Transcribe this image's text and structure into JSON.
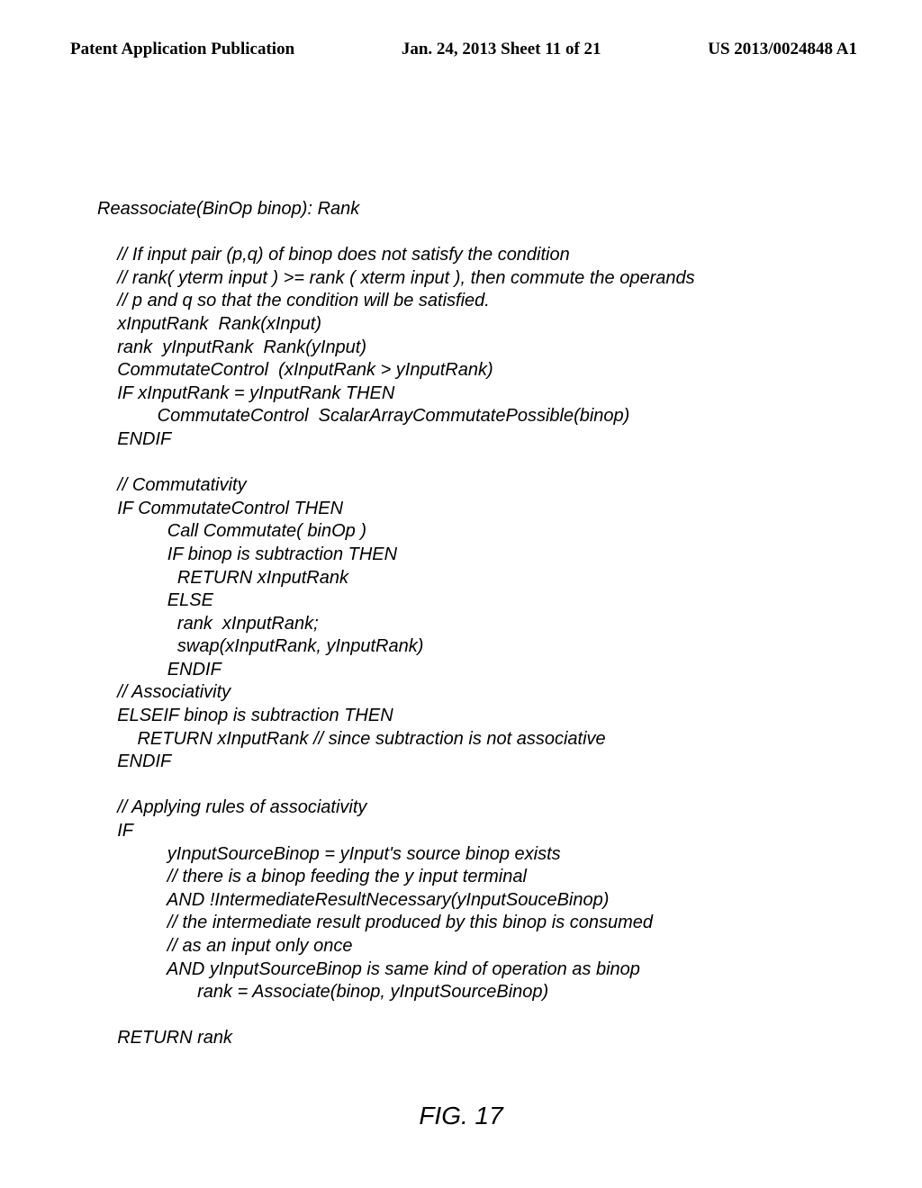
{
  "header": {
    "left": "Patent Application Publication",
    "center": "Jan. 24, 2013  Sheet 11 of 21",
    "right": "US 2013/0024848 A1"
  },
  "code": {
    "title": "Reassociate(BinOp binop): Rank",
    "block1": "    // If input pair (p,q) of binop does not satisfy the condition\n    // rank( yterm input ) >= rank ( xterm input ), then commute the operands\n    // p and q so that the condition will be satisfied.\n    xInputRank  Rank(xInput)\n    rank  yInputRank  Rank(yInput)\n    CommutateControl  (xInputRank > yInputRank)\n    IF xInputRank = yInputRank THEN\n            CommutateControl  ScalarArrayCommutatePossible(binop)\n    ENDIF",
    "block2": "    // Commutativity\n    IF CommutateControl THEN\n              Call Commutate( binOp )\n              IF binop is subtraction THEN\n                RETURN xInputRank\n              ELSE\n                rank  xInputRank;\n                swap(xInputRank, yInputRank)\n              ENDIF\n    // Associativity\n    ELSEIF binop is subtraction THEN\n        RETURN xInputRank // since subtraction is not associative\n    ENDIF",
    "block3": "    // Applying rules of associativity\n    IF\n              yInputSourceBinop = yInput's source binop exists\n              // there is a binop feeding the y input terminal\n              AND !IntermediateResultNecessary(yInputSouceBinop)\n              // the intermediate result produced by this binop is consumed\n              // as an input only once\n              AND yInputSourceBinop is same kind of operation as binop\n                    rank = Associate(binop, yInputSourceBinop)",
    "block4": "    RETURN rank"
  },
  "figure_label": "FIG. 17"
}
